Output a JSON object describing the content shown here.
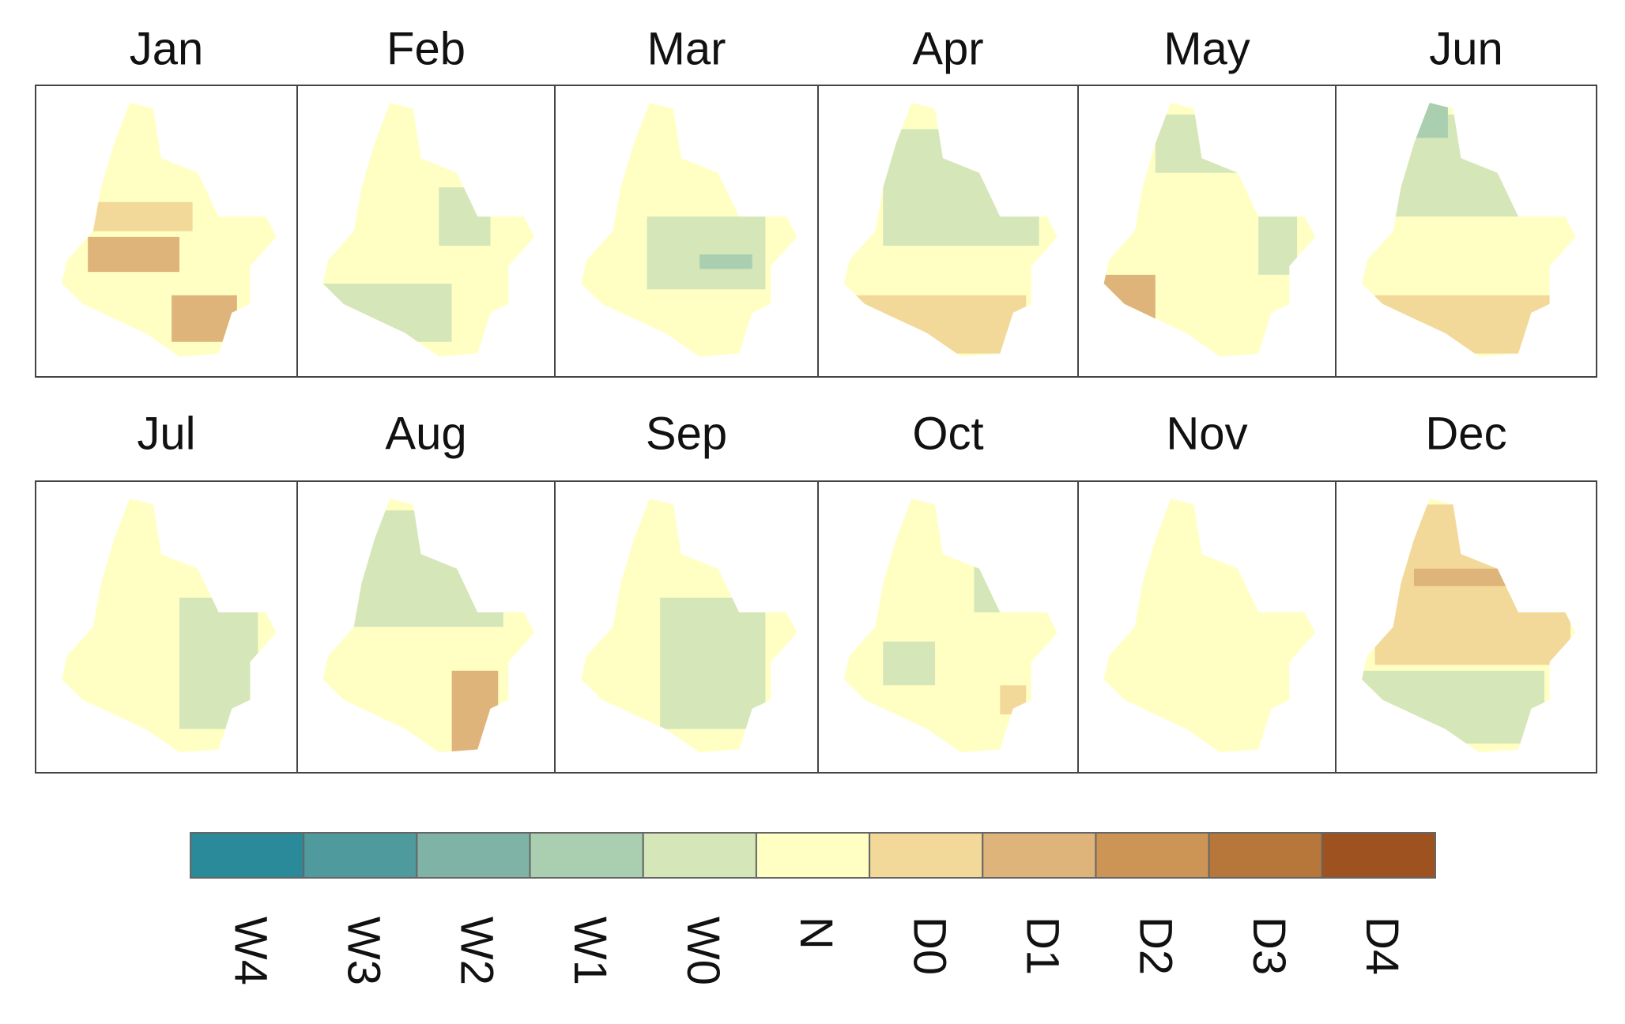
{
  "panels": [
    {
      "title": "Jan"
    },
    {
      "title": "Feb"
    },
    {
      "title": "Mar"
    },
    {
      "title": "Apr"
    },
    {
      "title": "May"
    },
    {
      "title": "Jun"
    },
    {
      "title": "Jul"
    },
    {
      "title": "Aug"
    },
    {
      "title": "Sep"
    },
    {
      "title": "Oct"
    },
    {
      "title": "Nov"
    },
    {
      "title": "Dec"
    }
  ],
  "legend": {
    "classes": [
      {
        "label": "W4",
        "color": "#2a8a99"
      },
      {
        "label": "W3",
        "color": "#4f9a9c"
      },
      {
        "label": "W2",
        "color": "#7eb3a6"
      },
      {
        "label": "W1",
        "color": "#a9cfb0"
      },
      {
        "label": "W0",
        "color": "#d5e6b8"
      },
      {
        "label": "N",
        "color": "#ffffc4"
      },
      {
        "label": "D0",
        "color": "#f2d99a"
      },
      {
        "label": "D1",
        "color": "#deb47a"
      },
      {
        "label": "D2",
        "color": "#cc9555"
      },
      {
        "label": "D3",
        "color": "#b8773a"
      },
      {
        "label": "D4",
        "color": "#9e5220"
      }
    ]
  }
}
